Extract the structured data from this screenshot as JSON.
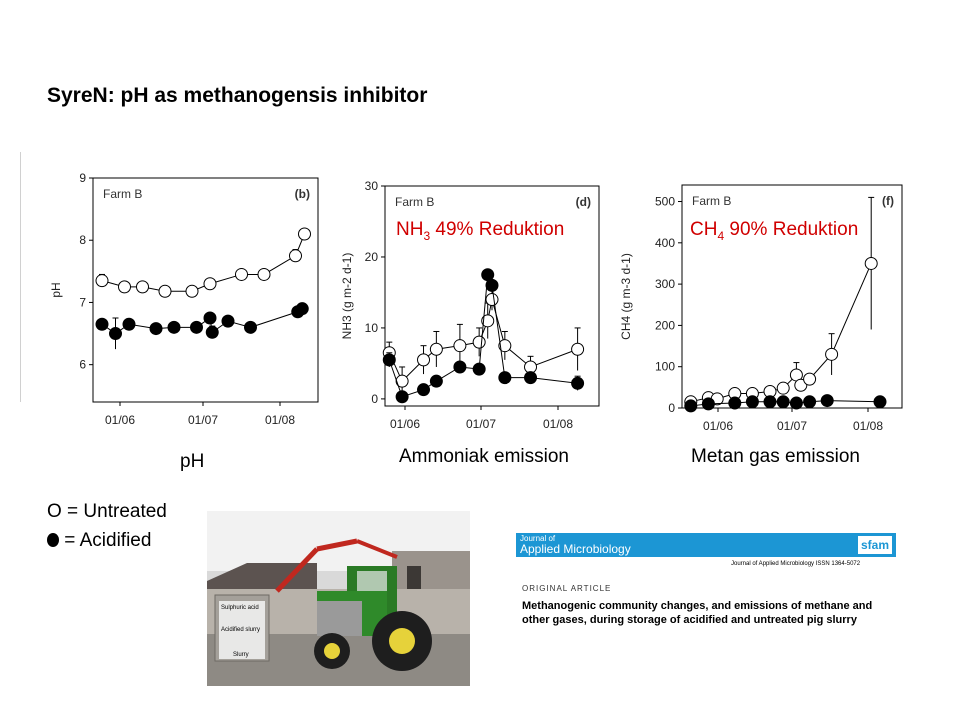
{
  "slide": {
    "title": "SyreN:  pH as methanogensis inhibitor",
    "captions": [
      "pH",
      "Ammoniak emission",
      "Metan gas emission"
    ],
    "annotations": {
      "nh3": {
        "prefix": "NH",
        "sub": "3",
        "rest": " 49% Reduktion"
      },
      "ch4": {
        "prefix": "CH",
        "sub": "4",
        "rest": " 90% Reduktion"
      }
    },
    "legend": {
      "open": "O = Untreated",
      "filled": "= Acidified"
    }
  },
  "photo": {
    "labels": [
      "Sulphuric acid",
      "Acidified slurry",
      "Slurry"
    ]
  },
  "article": {
    "journal_small": "Journal of",
    "journal_name": "Applied Microbiology",
    "society": "sfam",
    "issn": "Journal of Applied Microbiology ISSN 1364-5072",
    "kind": "ORIGINAL ARTICLE",
    "title": "Methanogenic community changes, and emissions of methane and other gases, during storage of acidified and untreated pig slurry"
  },
  "colors": {
    "annotation": "#d00000",
    "journal_bar": "#1c96d4"
  },
  "chart_data": [
    {
      "type": "line",
      "panel": "(b)",
      "farm": "Farm B",
      "xlabel": "",
      "ylabel": "pH",
      "x_ticks": [
        "01/06",
        "01/07",
        "01/08"
      ],
      "y_ticks": [
        6,
        7,
        8,
        9
      ],
      "ylim": [
        5.4,
        9
      ],
      "xlim": [
        0,
        100
      ],
      "series": [
        {
          "name": "Untreated",
          "marker": "open",
          "x": [
            4,
            14,
            22,
            32,
            44,
            52,
            66,
            76,
            90,
            94
          ],
          "y": [
            7.35,
            7.25,
            7.25,
            7.18,
            7.18,
            7.3,
            7.45,
            7.45,
            7.75,
            8.1
          ],
          "err": [
            0.1,
            0.05,
            0.05,
            0.05,
            0.05,
            0.05,
            0.05,
            0.05,
            0.1,
            0.05
          ]
        },
        {
          "name": "Acidified",
          "marker": "filled",
          "x": [
            4,
            10,
            16,
            28,
            36,
            46,
            52,
            53,
            60,
            70,
            91,
            93
          ],
          "y": [
            6.65,
            6.5,
            6.65,
            6.58,
            6.6,
            6.6,
            6.75,
            6.52,
            6.7,
            6.6,
            6.85,
            6.9
          ],
          "err": [
            0.05,
            0.25,
            0.05,
            0.05,
            0.05,
            0.05,
            0.05,
            0.1,
            0.05,
            0.05,
            0.05,
            0.05
          ]
        }
      ]
    },
    {
      "type": "line",
      "panel": "(d)",
      "farm": "Farm B",
      "xlabel": "",
      "ylabel": "NH3 (g m-2 d-1)",
      "x_ticks": [
        "01/06",
        "01/07",
        "01/08"
      ],
      "y_ticks": [
        0,
        10,
        20,
        30
      ],
      "ylim": [
        -1,
        30
      ],
      "xlim": [
        0,
        100
      ],
      "series": [
        {
          "name": "Untreated",
          "marker": "open",
          "x": [
            2,
            8,
            18,
            24,
            35,
            44,
            48,
            50,
            56,
            68,
            90
          ],
          "y": [
            6.5,
            2.5,
            5.5,
            7,
            7.5,
            8,
            11,
            14,
            7.5,
            4.5,
            7
          ],
          "err": [
            1.5,
            2,
            2,
            2.5,
            3,
            2,
            2.5,
            1.5,
            2,
            1.5,
            3
          ]
        },
        {
          "name": "Acidified",
          "marker": "filled",
          "x": [
            2,
            8,
            18,
            24,
            35,
            44,
            48,
            50,
            56,
            68,
            90
          ],
          "y": [
            5.5,
            0.3,
            1.3,
            2.5,
            4.5,
            4.2,
            17.5,
            16,
            3,
            3,
            2.2
          ],
          "err": [
            1,
            0.5,
            0.5,
            0.5,
            0.5,
            0.5,
            0.5,
            0.5,
            0.5,
            0.5,
            1
          ]
        }
      ]
    },
    {
      "type": "line",
      "panel": "(f)",
      "farm": "Farm B",
      "xlabel": "",
      "ylabel": "CH4 (g m-3 d-1)",
      "x_ticks": [
        "01/06",
        "01/07",
        "01/08"
      ],
      "y_ticks": [
        0,
        100,
        200,
        300,
        400,
        500
      ],
      "ylim": [
        0,
        540
      ],
      "xlim": [
        0,
        100
      ],
      "series": [
        {
          "name": "Untreated",
          "marker": "open",
          "x": [
            4,
            12,
            16,
            24,
            32,
            40,
            46,
            52,
            54,
            58,
            68,
            86
          ],
          "y": [
            15,
            25,
            22,
            35,
            35,
            40,
            48,
            80,
            55,
            70,
            130,
            350
          ],
          "err": [
            5,
            5,
            5,
            5,
            5,
            5,
            5,
            30,
            10,
            10,
            50,
            160
          ]
        },
        {
          "name": "Acidified",
          "marker": "filled",
          "x": [
            4,
            12,
            24,
            32,
            40,
            46,
            52,
            58,
            66,
            90
          ],
          "y": [
            5,
            10,
            12,
            15,
            15,
            15,
            12,
            15,
            18,
            15
          ],
          "err": [
            2,
            2,
            2,
            2,
            2,
            2,
            2,
            2,
            2,
            2
          ]
        }
      ]
    }
  ]
}
